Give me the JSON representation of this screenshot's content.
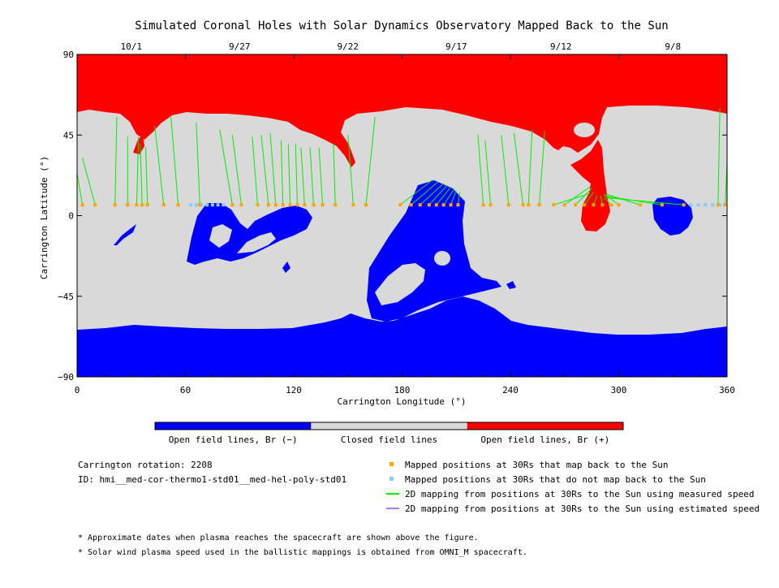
{
  "chart_data": {
    "type": "map",
    "title": "Simulated Coronal Holes with Solar Dynamics Observatory Mapped Back to the Sun",
    "xlabel": "Carrington Longitude (°)",
    "ylabel": "Carrington Latitude (°)",
    "xlim": [
      0,
      360
    ],
    "ylim": [
      -90,
      90
    ],
    "x_ticks": [
      "0",
      "60",
      "120",
      "180",
      "240",
      "300",
      "360"
    ],
    "y_ticks": [
      "90",
      "45",
      "0",
      "-45",
      "-90"
    ],
    "top_date_ticks": [
      {
        "label": "10/1",
        "lon": 30
      },
      {
        "label": "9/27",
        "lon": 90
      },
      {
        "label": "9/22",
        "lon": 150
      },
      {
        "label": "9/17",
        "lon": 210
      },
      {
        "label": "9/12",
        "lon": 268
      },
      {
        "label": "9/8",
        "lon": 330
      }
    ],
    "colorbar": [
      {
        "label": "Open field lines, Br (−)",
        "color": "#0000ff"
      },
      {
        "label": "Closed field lines",
        "color": "#d9d9d9"
      },
      {
        "label": "Open field lines, Br (+)",
        "color": "#ff0000"
      }
    ],
    "legend": [
      {
        "label": "Mapped positions at 30Rs that map back to the Sun",
        "color": "#ffa500",
        "kind": "square"
      },
      {
        "label": "Mapped positions at 30Rs that do not map back to the Sun",
        "color": "#87cefa",
        "kind": "square"
      },
      {
        "label": "2D mapping from positions at 30Rs to the Sun using measured speed",
        "color": "#00ee00",
        "kind": "line"
      },
      {
        "label": "2D mapping from positions at 30Rs to the Sun using estimated speed",
        "color": "#b27cdc",
        "kind": "line"
      }
    ],
    "info_lines": [
      "Carrington rotation: 2208",
      "ID: hmi__med-cor-thermo1-std01__med-hel-poly-std01"
    ],
    "notes": [
      "* Approximate dates when plasma reaches the spacecraft are shown above the figure.",
      "* Solar wind plasma speed used in the ballistic mappings is obtained from OMNI_M spacecraft."
    ],
    "spacecraft_latitude": 6,
    "mapped_points": [
      {
        "lon": 3,
        "end_lon": -2,
        "end_lat": 35
      },
      {
        "lon": 10,
        "end_lon": 3,
        "end_lat": 32
      },
      {
        "lon": 21,
        "end_lon": 22,
        "end_lat": 55
      },
      {
        "lon": 28,
        "end_lon": 28,
        "end_lat": 44
      },
      {
        "lon": 33,
        "end_lon": 34,
        "end_lat": 44
      },
      {
        "lon": 36,
        "end_lon": 35,
        "end_lat": 40
      },
      {
        "lon": 39,
        "end_lon": 38,
        "end_lat": 38
      },
      {
        "lon": 48,
        "end_lon": 43,
        "end_lat": 50
      },
      {
        "lon": 56,
        "end_lon": 52,
        "end_lat": 55
      },
      {
        "lon": 68,
        "end_lon": 66,
        "end_lat": 52
      },
      {
        "lon": 86,
        "end_lon": 79,
        "end_lat": 48
      },
      {
        "lon": 91,
        "end_lon": 86,
        "end_lat": 45
      },
      {
        "lon": 100,
        "end_lon": 97,
        "end_lat": 44
      },
      {
        "lon": 106,
        "end_lon": 102,
        "end_lat": 45
      },
      {
        "lon": 110,
        "end_lon": 107,
        "end_lat": 46
      },
      {
        "lon": 114,
        "end_lon": 113,
        "end_lat": 42
      },
      {
        "lon": 118,
        "end_lon": 117,
        "end_lat": 40
      },
      {
        "lon": 122,
        "end_lon": 121,
        "end_lat": 40
      },
      {
        "lon": 126,
        "end_lon": 124,
        "end_lat": 38
      },
      {
        "lon": 131,
        "end_lon": 129,
        "end_lat": 38
      },
      {
        "lon": 136,
        "end_lon": 134,
        "end_lat": 38
      },
      {
        "lon": 143,
        "end_lon": 142,
        "end_lat": 40
      },
      {
        "lon": 153,
        "end_lon": 150,
        "end_lat": 45
      },
      {
        "lon": 160,
        "end_lon": 165,
        "end_lat": 55
      },
      {
        "lon": 179,
        "end_lon": 197,
        "end_lat": 20
      },
      {
        "lon": 185,
        "end_lon": 200,
        "end_lat": 19
      },
      {
        "lon": 190,
        "end_lon": 203,
        "end_lat": 18
      },
      {
        "lon": 195,
        "end_lon": 205,
        "end_lat": 17
      },
      {
        "lon": 199,
        "end_lon": 207,
        "end_lat": 16
      },
      {
        "lon": 203,
        "end_lon": 209,
        "end_lat": 15
      },
      {
        "lon": 207,
        "end_lon": 210,
        "end_lat": 14
      },
      {
        "lon": 211,
        "end_lon": 212,
        "end_lat": 13
      },
      {
        "lon": 225,
        "end_lon": 222,
        "end_lat": 45
      },
      {
        "lon": 229,
        "end_lon": 226,
        "end_lat": 42
      },
      {
        "lon": 239,
        "end_lon": 235,
        "end_lat": 45
      },
      {
        "lon": 247,
        "end_lon": 242,
        "end_lat": 46
      },
      {
        "lon": 250,
        "end_lon": 252,
        "end_lat": 48
      },
      {
        "lon": 256,
        "end_lon": 259,
        "end_lat": 47
      },
      {
        "lon": 264,
        "end_lon": 283,
        "end_lat": 12
      },
      {
        "lon": 270,
        "end_lon": 284,
        "end_lat": 16
      },
      {
        "lon": 276,
        "end_lon": 285,
        "end_lat": 15
      },
      {
        "lon": 281,
        "end_lon": 286,
        "end_lat": 13
      },
      {
        "lon": 286,
        "end_lon": 288,
        "end_lat": 11
      },
      {
        "lon": 291,
        "end_lon": 290,
        "end_lat": 11
      },
      {
        "lon": 296,
        "end_lon": 292,
        "end_lat": 10
      },
      {
        "lon": 300,
        "end_lon": 292,
        "end_lat": 12
      },
      {
        "lon": 312,
        "end_lon": 293,
        "end_lat": 12
      },
      {
        "lon": 324,
        "end_lon": 292,
        "end_lat": 11
      },
      {
        "lon": 336,
        "end_lon": 293,
        "end_lat": 10
      },
      {
        "lon": 355,
        "end_lon": 356,
        "end_lat": 60
      },
      {
        "lon": 359,
        "end_lon": 361,
        "end_lat": 55
      }
    ],
    "unmapped_points": [
      63,
      66,
      69,
      72,
      75,
      78,
      81,
      340,
      344,
      348,
      352,
      356,
      360
    ]
  }
}
